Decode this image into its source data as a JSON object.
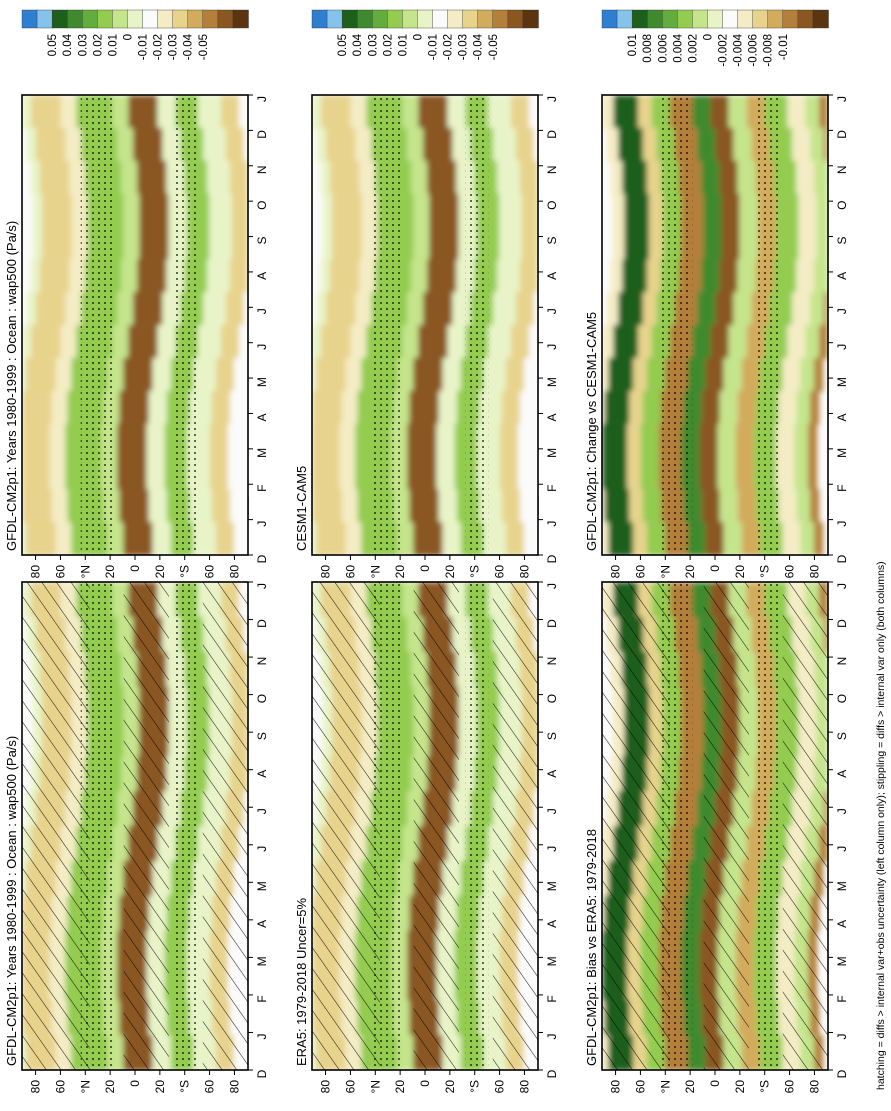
{
  "chart_data": [
    {
      "type": "heatmap",
      "title": "GFDL-CM2p1: Years 1980-1999 : Ocean : wap500 (Pa/s)",
      "field": "wap500",
      "units": "Pa/s",
      "hatching": true,
      "stippling": true,
      "colorbar": [
        "0.05",
        "0.04",
        "0.03",
        "0.02",
        "0.01",
        "0",
        "-0.01",
        "-0.02",
        "-0.03",
        "-0.04",
        "-0.05"
      ]
    },
    {
      "type": "heatmap",
      "title": "GFDL-CM2p1: Years 1980-1999 : Ocean : wap500 (Pa/s)",
      "field": "wap500",
      "units": "Pa/s",
      "hatching": false,
      "stippling": true,
      "colorbar": [
        "0.05",
        "0.04",
        "0.03",
        "0.02",
        "0.01",
        "0",
        "-0.01",
        "-0.02",
        "-0.03",
        "-0.04",
        "-0.05"
      ]
    },
    {
      "type": "heatmap",
      "title": "ERA5: 1979-2018 Uncer=5%",
      "hatching": true,
      "stippling": true,
      "colorbar": [
        "0.05",
        "0.04",
        "0.03",
        "0.02",
        "0.01",
        "0",
        "-0.01",
        "-0.02",
        "-0.03",
        "-0.04",
        "-0.05"
      ]
    },
    {
      "type": "heatmap",
      "title": "CESM1-CAM5",
      "hatching": false,
      "stippling": true,
      "colorbar": [
        "0.05",
        "0.04",
        "0.03",
        "0.02",
        "0.01",
        "0",
        "-0.01",
        "-0.02",
        "-0.03",
        "-0.04",
        "-0.05"
      ]
    },
    {
      "type": "heatmap",
      "title": "GFDL-CM2p1: Bias vs ERA5: 1979-2018",
      "hatching": true,
      "stippling": true,
      "colorbar": [
        "0.01",
        "0.008",
        "0.006",
        "0.004",
        "0.002",
        "0",
        "-0.002",
        "-0.004",
        "-0.006",
        "-0.008",
        "-0.01"
      ]
    },
    {
      "type": "heatmap",
      "title": "GFDL-CM2p1: Change vs CESM1-CAM5",
      "hatching": false,
      "stippling": true,
      "colorbar": [
        "0.01",
        "0.008",
        "0.006",
        "0.004",
        "0.002",
        "0",
        "-0.002",
        "-0.004",
        "-0.006",
        "-0.008",
        "-0.01"
      ]
    }
  ],
  "axes": {
    "months": [
      "D",
      "J",
      "F",
      "M",
      "A",
      "M",
      "J",
      "J",
      "A",
      "S",
      "O",
      "N",
      "D",
      "J"
    ],
    "lat_ticks": [
      "80",
      "60",
      "°N",
      "20",
      "0",
      "20",
      "°S",
      "60",
      "80"
    ]
  },
  "footnote": "hatching = diffs > internal var+obs uncertainty (left column only); stippling = diffs > internal var only (both columns)",
  "colors": {
    "scale": [
      "#2f7fd0",
      "#86c3ea",
      "#1f5f1c",
      "#3f8a2e",
      "#62ad3d",
      "#93cc4f",
      "#c5e58c",
      "#e8f4c8",
      "#fbfbfb",
      "#f4ecc4",
      "#e7d38c",
      "#d2ab5c",
      "#b47f3a",
      "#8a5721",
      "#5a3510"
    ],
    "frame": "#000000"
  }
}
